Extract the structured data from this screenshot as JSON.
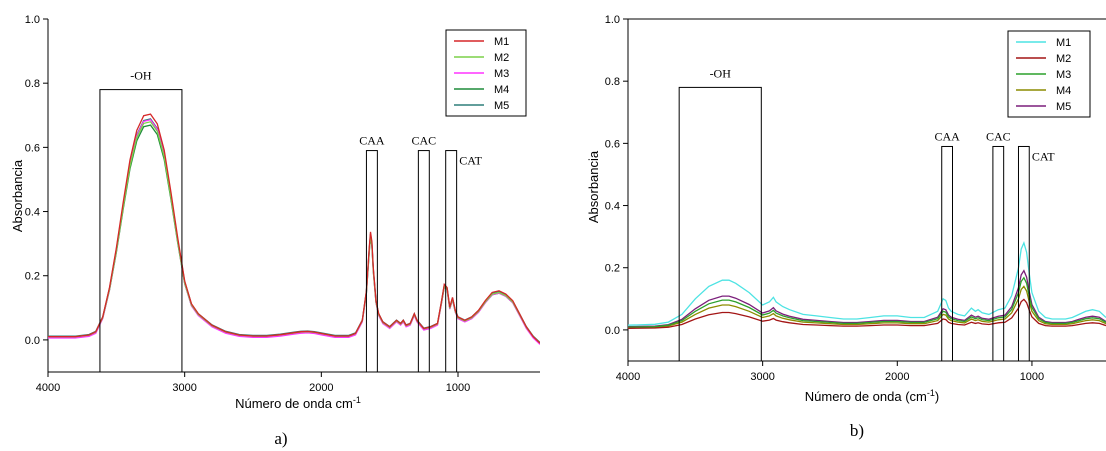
{
  "chart_data": [
    {
      "type": "line",
      "panel_label": "a)",
      "xlabel": "Número de onda cm",
      "xlabel_superscript": "-1",
      "ylabel": "Absorbancia",
      "xlim": [
        4000,
        400
      ],
      "ylim": [
        -0.1,
        1.0
      ],
      "x_ticks": [
        4000,
        3000,
        2000,
        1000
      ],
      "x_tick_labels": [
        "4000",
        "3000",
        "2000",
        "1000"
      ],
      "y_ticks": [
        0.0,
        0.2,
        0.4,
        0.6,
        0.8,
        1.0
      ],
      "y_tick_labels": [
        "0.0",
        "0.2",
        "0.4",
        "0.6",
        "0.8",
        "1.0"
      ],
      "legend_position": "top-right",
      "series": [
        {
          "name": "M1",
          "color": "#d62728",
          "scale": 1.02,
          "offset": 0.0
        },
        {
          "name": "M2",
          "color": "#7bd148",
          "scale": 0.985,
          "offset": 0.0
        },
        {
          "name": "M3",
          "color": "#ff33ff",
          "scale": 1.0,
          "offset": -0.004
        },
        {
          "name": "M4",
          "color": "#1f8c3a",
          "scale": 0.97,
          "offset": 0.0
        },
        {
          "name": "M5",
          "color": "#2e7f7a",
          "scale": 0.995,
          "offset": 0.002
        }
      ],
      "base_spectrum": {
        "x": [
          4000,
          3800,
          3700,
          3650,
          3600,
          3550,
          3500,
          3450,
          3400,
          3350,
          3300,
          3250,
          3200,
          3150,
          3100,
          3050,
          3000,
          2950,
          2900,
          2800,
          2700,
          2600,
          2500,
          2400,
          2300,
          2200,
          2150,
          2100,
          2050,
          2000,
          1900,
          1800,
          1750,
          1700,
          1670,
          1650,
          1640,
          1630,
          1620,
          1600,
          1580,
          1550,
          1500,
          1450,
          1420,
          1400,
          1380,
          1350,
          1320,
          1300,
          1250,
          1200,
          1150,
          1120,
          1100,
          1080,
          1060,
          1040,
          1020,
          1000,
          950,
          900,
          850,
          800,
          750,
          700,
          650,
          600,
          550,
          500,
          450,
          400
        ],
        "y": [
          0.01,
          0.01,
          0.015,
          0.025,
          0.07,
          0.16,
          0.28,
          0.42,
          0.55,
          0.64,
          0.685,
          0.69,
          0.66,
          0.58,
          0.45,
          0.31,
          0.18,
          0.11,
          0.08,
          0.045,
          0.025,
          0.015,
          0.012,
          0.012,
          0.016,
          0.022,
          0.025,
          0.026,
          0.024,
          0.02,
          0.012,
          0.012,
          0.02,
          0.06,
          0.15,
          0.28,
          0.33,
          0.3,
          0.22,
          0.12,
          0.08,
          0.055,
          0.04,
          0.06,
          0.05,
          0.06,
          0.045,
          0.05,
          0.08,
          0.06,
          0.035,
          0.04,
          0.05,
          0.12,
          0.17,
          0.16,
          0.1,
          0.13,
          0.09,
          0.07,
          0.06,
          0.07,
          0.09,
          0.12,
          0.145,
          0.15,
          0.14,
          0.12,
          0.08,
          0.04,
          0.01,
          -0.01
        ]
      },
      "annotations": [
        {
          "label": "-OH",
          "x_range": [
            3620,
            3020
          ],
          "y_top": 0.78
        },
        {
          "label": "CAA",
          "x_range": [
            1670,
            1590
          ],
          "y_top": 0.59
        },
        {
          "label": "CAC",
          "x_range": [
            1290,
            1210
          ],
          "y_top": 0.59
        },
        {
          "label": "CAT",
          "x_range": [
            1090,
            1010
          ],
          "y_top": 0.59
        }
      ]
    },
    {
      "type": "line",
      "panel_label": "b)",
      "xlabel": "Número de onda (cm",
      "xlabel_superscript": "-1",
      "xlabel_suffix": ")",
      "ylabel": "Absorbancia",
      "xlim": [
        4000,
        450
      ],
      "ylim": [
        -0.1,
        1.0
      ],
      "x_ticks": [
        4000,
        3000,
        2000,
        1000
      ],
      "x_tick_labels": [
        "4000",
        "3000",
        "2000",
        "1000"
      ],
      "y_ticks": [
        0.0,
        0.2,
        0.4,
        0.6,
        0.8,
        1.0
      ],
      "y_tick_labels": [
        "0.0",
        "0.2",
        "0.4",
        "0.6",
        "0.8",
        "1.0"
      ],
      "legend_position": "top-right",
      "series": [
        {
          "name": "M1",
          "color": "#4de3e3",
          "scale": 1.0,
          "offset": 0.0
        },
        {
          "name": "M2",
          "color": "#a31515",
          "scale": 0.35,
          "offset": 0.0
        },
        {
          "name": "M3",
          "color": "#2ca02c",
          "scale": 0.6,
          "offset": 0.0
        },
        {
          "name": "M4",
          "color": "#8c8c00",
          "scale": 0.5,
          "offset": 0.0
        },
        {
          "name": "M5",
          "color": "#7b1f7b",
          "scale": 0.68,
          "offset": 0.0
        }
      ],
      "base_spectrum": {
        "x": [
          4000,
          3800,
          3700,
          3600,
          3500,
          3400,
          3300,
          3250,
          3200,
          3100,
          3000,
          2950,
          2920,
          2900,
          2850,
          2800,
          2700,
          2600,
          2500,
          2400,
          2300,
          2200,
          2100,
          2000,
          1900,
          1800,
          1700,
          1660,
          1640,
          1620,
          1600,
          1550,
          1500,
          1450,
          1420,
          1400,
          1370,
          1320,
          1250,
          1200,
          1150,
          1100,
          1080,
          1060,
          1040,
          1020,
          1000,
          950,
          900,
          850,
          800,
          750,
          700,
          650,
          600,
          550,
          500,
          450
        ],
        "y": [
          0.015,
          0.018,
          0.025,
          0.05,
          0.1,
          0.14,
          0.16,
          0.16,
          0.15,
          0.12,
          0.08,
          0.09,
          0.105,
          0.09,
          0.075,
          0.065,
          0.05,
          0.045,
          0.04,
          0.035,
          0.035,
          0.04,
          0.045,
          0.045,
          0.04,
          0.04,
          0.06,
          0.1,
          0.095,
          0.07,
          0.06,
          0.05,
          0.045,
          0.07,
          0.06,
          0.065,
          0.055,
          0.05,
          0.065,
          0.07,
          0.11,
          0.2,
          0.26,
          0.28,
          0.25,
          0.18,
          0.12,
          0.06,
          0.04,
          0.035,
          0.035,
          0.035,
          0.04,
          0.05,
          0.06,
          0.065,
          0.06,
          0.04
        ]
      },
      "annotations": [
        {
          "label": "-OH",
          "x_range": [
            3620,
            3010
          ],
          "y_top": 0.78
        },
        {
          "label": "CAA",
          "x_range": [
            1670,
            1590
          ],
          "y_top": 0.59
        },
        {
          "label": "CAC",
          "x_range": [
            1290,
            1210
          ],
          "y_top": 0.59
        },
        {
          "label": "CAT",
          "x_range": [
            1100,
            1020
          ],
          "y_top": 0.59
        }
      ]
    }
  ]
}
